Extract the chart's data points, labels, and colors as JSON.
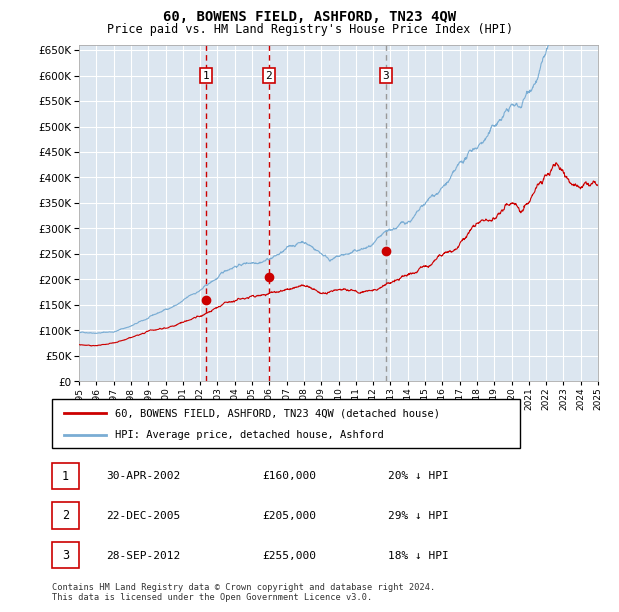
{
  "title": "60, BOWENS FIELD, ASHFORD, TN23 4QW",
  "subtitle": "Price paid vs. HM Land Registry's House Price Index (HPI)",
  "plot_bg_color": "#dce6f0",
  "ylim": [
    0,
    660000
  ],
  "yticks": [
    0,
    50000,
    100000,
    150000,
    200000,
    250000,
    300000,
    350000,
    400000,
    450000,
    500000,
    550000,
    600000,
    650000
  ],
  "year_start": 1995,
  "year_end": 2025,
  "red_line_color": "#cc0000",
  "blue_line_color": "#7aadd4",
  "vline_color_red": "#cc0000",
  "vline_color_gray": "#999999",
  "purchase_dates": [
    2002.33,
    2005.97,
    2012.74
  ],
  "purchase_prices": [
    160000,
    205000,
    255000
  ],
  "purchase_labels": [
    "1",
    "2",
    "3"
  ],
  "legend_red_label": "60, BOWENS FIELD, ASHFORD, TN23 4QW (detached house)",
  "legend_blue_label": "HPI: Average price, detached house, Ashford",
  "table_rows": [
    [
      "1",
      "30-APR-2002",
      "£160,000",
      "20% ↓ HPI"
    ],
    [
      "2",
      "22-DEC-2005",
      "£205,000",
      "29% ↓ HPI"
    ],
    [
      "3",
      "28-SEP-2012",
      "£255,000",
      "18% ↓ HPI"
    ]
  ],
  "footer_text": "Contains HM Land Registry data © Crown copyright and database right 2024.\nThis data is licensed under the Open Government Licence v3.0.",
  "grid_color": "#ffffff"
}
